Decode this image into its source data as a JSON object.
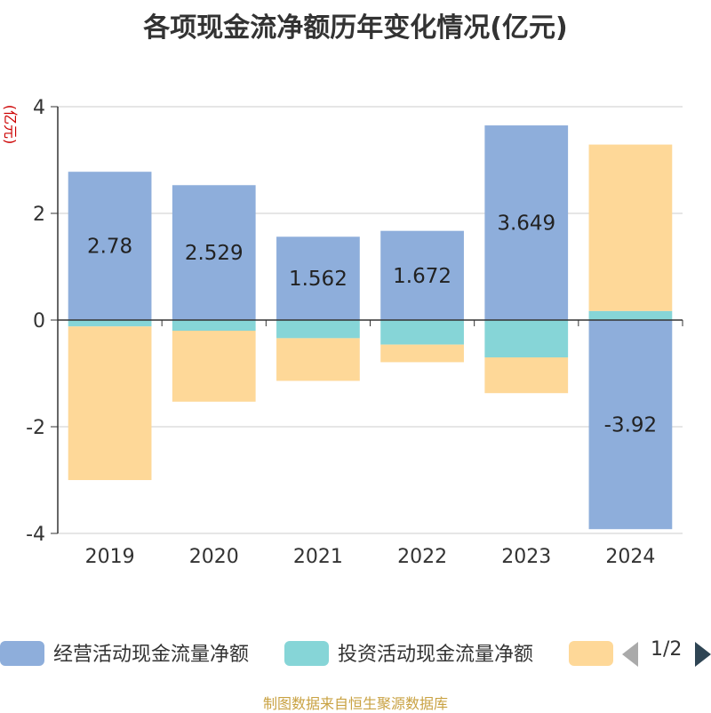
{
  "title": "各项现金流净额历年变化情况(亿元)",
  "footer": "制图数据来自恒生聚源数据库",
  "pager": {
    "text": "1/2"
  },
  "colors": {
    "operating": "#8eaedb",
    "investing": "#86d5d7",
    "financing": "#fed898"
  },
  "chart_data": {
    "type": "bar",
    "stacked": true,
    "title": "各项现金流净额历年变化情况(亿元)",
    "ylabel": "(亿元)",
    "ylim": [
      -4,
      4
    ],
    "yticks": [
      -4,
      -2,
      0,
      2,
      4
    ],
    "grid": true,
    "legend_position": "bottom",
    "categories": [
      "2019",
      "2020",
      "2021",
      "2022",
      "2023",
      "2024"
    ],
    "series": [
      {
        "name": "经营活动现金流量净额",
        "values": [
          2.78,
          2.529,
          1.562,
          1.672,
          3.649,
          -3.92
        ],
        "labels": [
          "2.78",
          "2.529",
          "1.562",
          "1.672",
          "3.649",
          "-3.92"
        ]
      },
      {
        "name": "投资活动现金流量净额",
        "values": [
          -0.12,
          -0.2,
          -0.34,
          -0.46,
          -0.7,
          0.17
        ]
      },
      {
        "name": "",
        "values": [
          -2.88,
          -1.33,
          -0.8,
          -0.33,
          -0.67,
          3.12
        ]
      }
    ]
  }
}
